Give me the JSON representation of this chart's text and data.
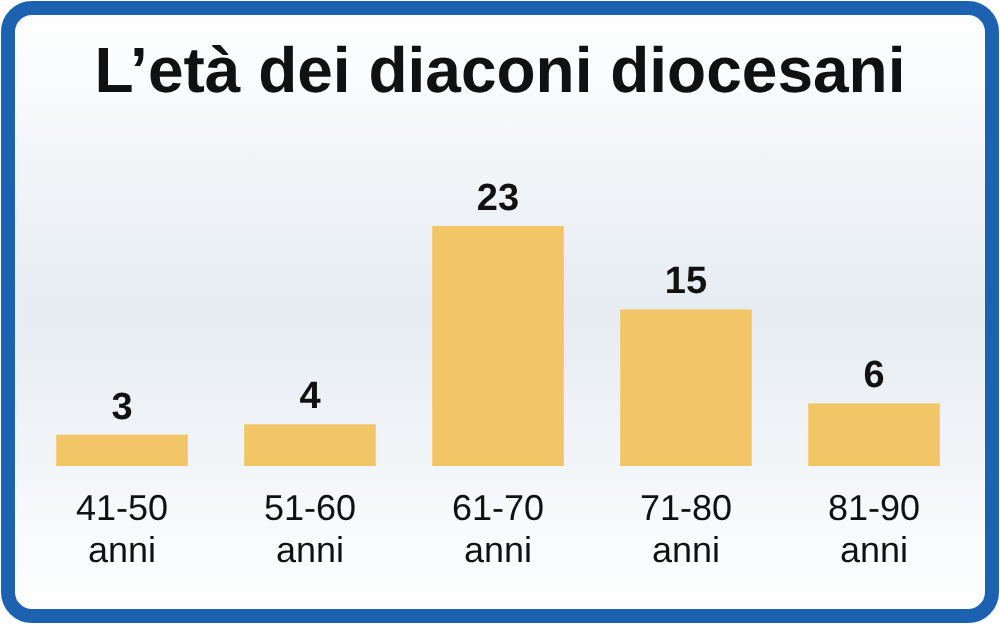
{
  "chart_data": {
    "type": "bar",
    "title": "L’età dei diaconi diocesani",
    "categories": [
      "41-50 anni",
      "51-60 anni",
      "61-70 anni",
      "71-80 anni",
      "81-90 anni"
    ],
    "values": [
      3,
      4,
      23,
      15,
      6
    ],
    "color": "#f2c666",
    "data_labels": true
  }
}
